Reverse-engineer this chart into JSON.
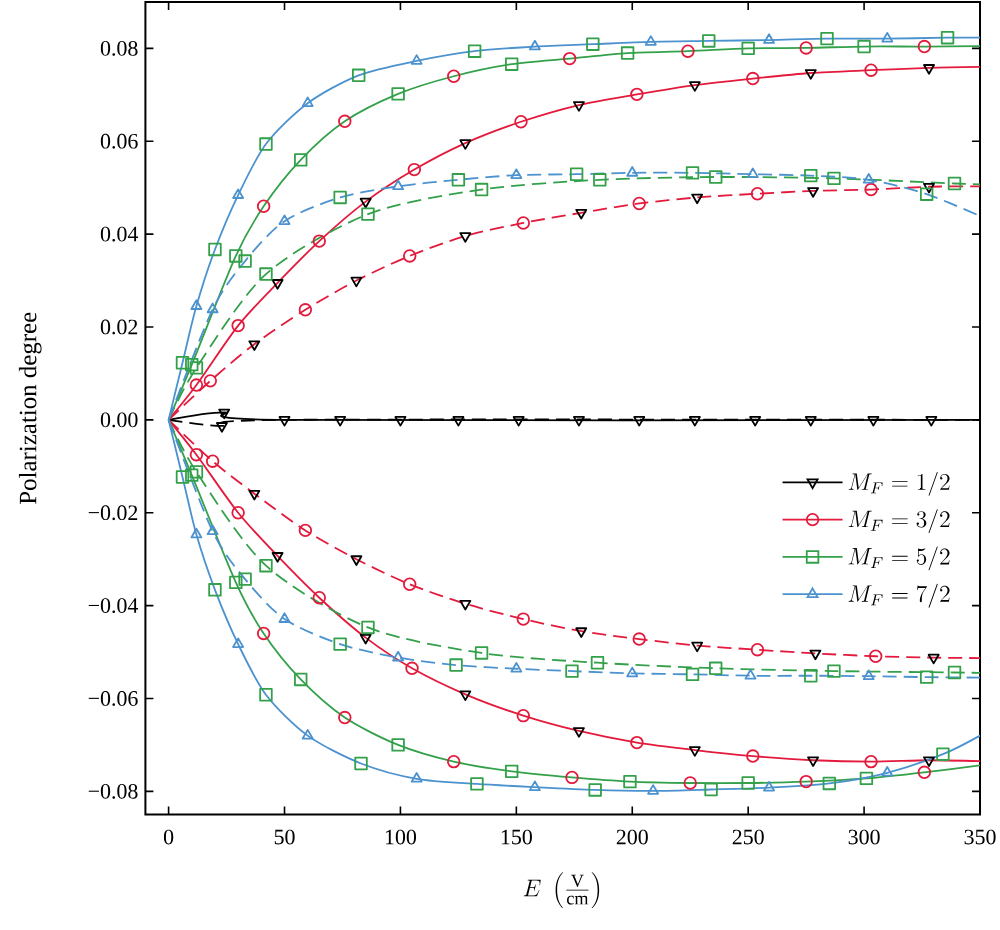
{
  "chart_data": {
    "type": "line",
    "xlabel": "E\\;\\left(\\frac{\\mathrm{V}}{\\mathrm{cm}}\\right)",
    "ylabel": "Polarization degree",
    "xlim": [
      -10,
      350
    ],
    "ylim": [
      -0.085,
      0.09
    ],
    "xticks": [
      0,
      50,
      100,
      150,
      200,
      250,
      300,
      350
    ],
    "yticks": [
      {
        "value": -0.08,
        "label": "−0.08"
      },
      {
        "value": -0.06,
        "label": "−0.06"
      },
      {
        "value": -0.04,
        "label": "−0.04"
      },
      {
        "value": -0.02,
        "label": "−0.02"
      },
      {
        "value": 0,
        "label": "0.00"
      },
      {
        "value": 0.02,
        "label": "0.02"
      },
      {
        "value": 0.04,
        "label": "0.04"
      },
      {
        "value": 0.06,
        "label": "0.06"
      },
      {
        "value": 0.08,
        "label": "0.08"
      }
    ],
    "legend": "right",
    "series": [
      {
        "color": "#000000",
        "line_style": "solid",
        "x": [
          0,
          24,
          50,
          350
        ],
        "values": [
          0,
          0.0016,
          0,
          0
        ]
      },
      {
        "color": "#000000",
        "line_style": "dashed",
        "x": [
          0,
          23,
          50,
          350
        ],
        "values": [
          0,
          -0.0013,
          0,
          0
        ]
      },
      {
        "color": "#e31a3c",
        "line_style": "solid",
        "x": [
          0,
          12,
          30,
          47,
          65,
          85,
          106,
          128,
          152,
          177,
          202,
          227,
          252,
          277,
          303,
          328,
          350
        ],
        "values": [
          0,
          0.0075,
          0.0203,
          0.0295,
          0.0385,
          0.047,
          0.0539,
          0.0596,
          0.0642,
          0.0678,
          0.0701,
          0.0721,
          0.0735,
          0.0747,
          0.0753,
          0.0758,
          0.076
        ]
      },
      {
        "color": "#e31a3c",
        "line_style": "dashed",
        "x": [
          0,
          18,
          37,
          59,
          81,
          104,
          128,
          153,
          178,
          203,
          228,
          254,
          278,
          303,
          328,
          350
        ],
        "values": [
          0,
          0.0084,
          0.0163,
          0.0237,
          0.03,
          0.0353,
          0.0396,
          0.0424,
          0.0446,
          0.0466,
          0.0479,
          0.0487,
          0.0493,
          0.0496,
          0.0502,
          0.0503
        ]
      },
      {
        "color": "#e31a3c",
        "line_style": "solid",
        "x": [
          0,
          12,
          30,
          47,
          65,
          85,
          105,
          128,
          153,
          177,
          202,
          227,
          252,
          278,
          303,
          328,
          350
        ],
        "values": [
          0,
          -0.0075,
          -0.02,
          -0.0293,
          -0.0383,
          -0.0469,
          -0.0535,
          -0.0591,
          -0.0637,
          -0.067,
          -0.0695,
          -0.0711,
          -0.0724,
          -0.0733,
          -0.0736,
          -0.0733,
          -0.0735
        ]
      },
      {
        "color": "#e31a3c",
        "line_style": "dashed",
        "x": [
          0,
          19,
          37,
          59,
          81,
          104,
          128,
          153,
          178,
          203,
          228,
          254,
          279,
          305,
          330,
          350
        ],
        "values": [
          0,
          -0.0089,
          -0.0159,
          -0.0238,
          -0.03,
          -0.0354,
          -0.0396,
          -0.0429,
          -0.0455,
          -0.0472,
          -0.0486,
          -0.0495,
          -0.0503,
          -0.0509,
          -0.0512,
          -0.0513
        ]
      },
      {
        "color": "#33a04a",
        "line_style": "solid",
        "x": [
          0,
          10,
          29,
          41,
          57,
          76,
          99,
          123,
          148,
          173,
          198,
          224,
          250,
          275,
          300,
          326,
          350
        ],
        "values": [
          0,
          0.0119,
          0.0353,
          0.046,
          0.056,
          0.0643,
          0.0702,
          0.074,
          0.0766,
          0.0778,
          0.079,
          0.0794,
          0.08,
          0.0801,
          0.0804,
          0.0804,
          0.0805
        ]
      },
      {
        "color": "#33a04a",
        "line_style": "dashed",
        "x": [
          0,
          12,
          42,
          86,
          135,
          186,
          236,
          287,
          339,
          350
        ],
        "values": [
          0,
          0.0112,
          0.0314,
          0.0443,
          0.0496,
          0.0517,
          0.0523,
          0.052,
          0.0509,
          0.0507
        ]
      },
      {
        "color": "#33a04a",
        "line_style": "solid",
        "x": [
          0,
          10,
          29,
          41,
          57,
          76,
          99,
          123,
          148,
          174,
          199,
          225,
          250,
          275,
          301,
          326,
          350
        ],
        "values": [
          0,
          -0.0119,
          -0.035,
          -0.046,
          -0.0559,
          -0.0641,
          -0.07,
          -0.0736,
          -0.0757,
          -0.077,
          -0.0779,
          -0.0782,
          -0.0782,
          -0.0779,
          -0.0772,
          -0.0759,
          -0.0744
        ]
      },
      {
        "color": "#33a04a",
        "line_style": "dashed",
        "x": [
          0,
          12,
          42,
          86,
          135,
          185,
          236,
          287,
          339,
          350
        ],
        "values": [
          0,
          -0.0112,
          -0.0314,
          -0.0447,
          -0.0502,
          -0.0523,
          -0.0535,
          -0.0541,
          -0.0544,
          -0.0545
        ]
      },
      {
        "color": "#4b92cf",
        "line_style": "solid",
        "x": [
          0,
          6,
          12,
          20,
          30,
          42,
          60,
          82,
          107,
          132,
          158,
          183,
          208,
          233,
          259,
          284,
          310,
          336,
          350
        ],
        "values": [
          0,
          0.0123,
          0.0245,
          0.0367,
          0.0484,
          0.0594,
          0.0682,
          0.0742,
          0.0773,
          0.0794,
          0.0804,
          0.0809,
          0.0814,
          0.0816,
          0.0818,
          0.0821,
          0.0821,
          0.0823,
          0.0823
        ]
      },
      {
        "color": "#4b92cf",
        "line_style": "dashed",
        "x": [
          0,
          19,
          33,
          50,
          74,
          99,
          125,
          150,
          176,
          200,
          226,
          252,
          277,
          302,
          327,
          350
        ],
        "values": [
          0,
          0.0238,
          0.0342,
          0.0428,
          0.0479,
          0.0503,
          0.0517,
          0.0527,
          0.0529,
          0.0532,
          0.0532,
          0.0529,
          0.0526,
          0.0517,
          0.0486,
          0.0439
        ]
      },
      {
        "color": "#4b92cf",
        "line_style": "solid",
        "x": [
          0,
          6,
          12,
          20,
          30,
          42,
          60,
          83,
          107,
          133,
          158,
          184,
          209,
          234,
          259,
          285,
          310,
          334,
          350
        ],
        "values": [
          0,
          -0.0123,
          -0.0247,
          -0.0366,
          -0.0483,
          -0.0592,
          -0.068,
          -0.074,
          -0.0773,
          -0.0784,
          -0.0791,
          -0.0797,
          -0.0799,
          -0.0796,
          -0.0792,
          -0.0783,
          -0.076,
          -0.072,
          -0.068
        ]
      },
      {
        "color": "#4b92cf",
        "line_style": "dashed",
        "x": [
          0,
          19,
          33,
          50,
          74,
          99,
          124,
          150,
          174,
          200,
          226,
          251,
          277,
          302,
          327,
          350
        ],
        "values": [
          0,
          -0.024,
          -0.0343,
          -0.0429,
          -0.0483,
          -0.0512,
          -0.0528,
          -0.0536,
          -0.0541,
          -0.0546,
          -0.0548,
          -0.0551,
          -0.0551,
          -0.0552,
          -0.0554,
          -0.0555
        ]
      },
      {
        "type": "scatter",
        "name": "M_F = 1/2",
        "color": "#000000",
        "marker": "triangle-down",
        "x": [
          47,
          85,
          128,
          177,
          227,
          277,
          328,
          37,
          81,
          128,
          178,
          228,
          278,
          328,
          47,
          85,
          128,
          177,
          227,
          278,
          328,
          37,
          81,
          128,
          178,
          228,
          279,
          330,
          24,
          23,
          50,
          74,
          100,
          125,
          151,
          177,
          203,
          227,
          253,
          277,
          304,
          329
        ],
        "values": [
          0.0295,
          0.047,
          0.0596,
          0.0678,
          0.0721,
          0.0747,
          0.0758,
          0.0163,
          0.03,
          0.0396,
          0.0446,
          0.0479,
          0.0493,
          0.0502,
          -0.0293,
          -0.0469,
          -0.0591,
          -0.067,
          -0.0711,
          -0.0733,
          -0.0733,
          -0.0159,
          -0.03,
          -0.0396,
          -0.0455,
          -0.0486,
          -0.0503,
          -0.0512,
          0.0016,
          -0.0013,
          0,
          0,
          0,
          0,
          0,
          0,
          0,
          0,
          0,
          0,
          0,
          0
        ]
      },
      {
        "type": "scatter",
        "name": "M_F = 3/2",
        "color": "#e31a3c",
        "marker": "circle",
        "x": [
          41,
          76,
          123,
          173,
          224,
          275,
          326,
          12,
          30,
          65,
          106,
          152,
          202,
          252,
          303,
          18,
          59,
          104,
          153,
          203,
          254,
          303,
          41,
          76,
          123,
          174,
          225,
          275,
          326,
          12,
          30,
          65,
          105,
          153,
          202,
          252,
          303,
          19,
          59,
          104,
          153,
          203,
          254,
          305
        ],
        "values": [
          0.046,
          0.0643,
          0.074,
          0.0778,
          0.0794,
          0.0801,
          0.0804,
          0.0075,
          0.0203,
          0.0385,
          0.0539,
          0.0642,
          0.0701,
          0.0735,
          0.0753,
          0.0084,
          0.0237,
          0.0353,
          0.0424,
          0.0466,
          0.0487,
          0.0496,
          -0.046,
          -0.0641,
          -0.0736,
          -0.077,
          -0.0782,
          -0.0779,
          -0.0759,
          -0.0075,
          -0.02,
          -0.0383,
          -0.0535,
          -0.0637,
          -0.0695,
          -0.0724,
          -0.0736,
          -0.0089,
          -0.0238,
          -0.0354,
          -0.0429,
          -0.0472,
          -0.0495,
          -0.0509
        ]
      },
      {
        "type": "scatter",
        "name": "M_F = 5/2",
        "color": "#33a04a",
        "marker": "square",
        "x": [
          6,
          20,
          42,
          82,
          132,
          183,
          233,
          284,
          336,
          10,
          29,
          57,
          99,
          148,
          198,
          250,
          300,
          33,
          74,
          125,
          176,
          226,
          277,
          327,
          12,
          42,
          86,
          135,
          186,
          236,
          287,
          339,
          6,
          20,
          42,
          83,
          133,
          184,
          234,
          285,
          334,
          10,
          29,
          57,
          99,
          148,
          199,
          250,
          301,
          33,
          74,
          124,
          174,
          226,
          277,
          327,
          12,
          42,
          86,
          135,
          185,
          236,
          287,
          339
        ],
        "values": [
          0.0123,
          0.0367,
          0.0594,
          0.0742,
          0.0794,
          0.0809,
          0.0816,
          0.0821,
          0.0823,
          0.0119,
          0.0353,
          0.056,
          0.0702,
          0.0766,
          0.079,
          0.08,
          0.0804,
          0.0342,
          0.0479,
          0.0517,
          0.0529,
          0.0532,
          0.0526,
          0.0486,
          0.0112,
          0.0314,
          0.0443,
          0.0496,
          0.0517,
          0.0523,
          0.052,
          0.0509,
          -0.0123,
          -0.0366,
          -0.0592,
          -0.074,
          -0.0784,
          -0.0797,
          -0.0796,
          -0.0783,
          -0.072,
          -0.0119,
          -0.035,
          -0.0559,
          -0.07,
          -0.0757,
          -0.0779,
          -0.0782,
          -0.0772,
          -0.0343,
          -0.0483,
          -0.0528,
          -0.0541,
          -0.0548,
          -0.0551,
          -0.0554,
          -0.0112,
          -0.0314,
          -0.0447,
          -0.0502,
          -0.0523,
          -0.0535,
          -0.0541,
          -0.0544
        ]
      },
      {
        "type": "scatter",
        "name": "M_F = 7/2",
        "color": "#4b92cf",
        "marker": "triangle",
        "x": [
          12,
          30,
          60,
          107,
          158,
          208,
          259,
          310,
          19,
          50,
          99,
          150,
          200,
          252,
          302,
          12,
          30,
          60,
          107,
          158,
          209,
          259,
          310,
          19,
          50,
          99,
          150,
          200,
          251,
          302
        ],
        "values": [
          0.0245,
          0.0484,
          0.0682,
          0.0773,
          0.0804,
          0.0814,
          0.0818,
          0.0821,
          0.0238,
          0.0428,
          0.0503,
          0.0527,
          0.0532,
          0.0529,
          0.0517,
          -0.0247,
          -0.0483,
          -0.068,
          -0.0773,
          -0.0791,
          -0.0799,
          -0.0792,
          -0.076,
          -0.024,
          -0.0429,
          -0.0512,
          -0.0536,
          -0.0546,
          -0.0551,
          -0.0552
        ]
      }
    ]
  }
}
